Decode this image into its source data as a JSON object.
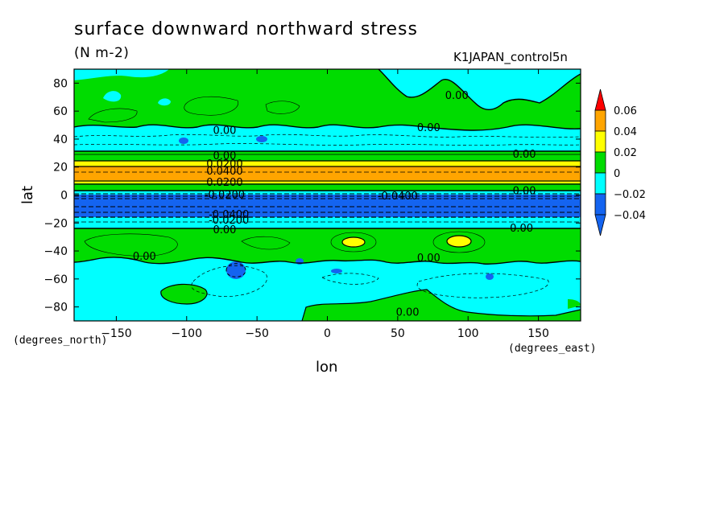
{
  "header": {
    "title": "surface downward northward stress",
    "units": "(N m-2)",
    "run_name": "K1JAPAN_control5n"
  },
  "axes": {
    "x_label": "lon",
    "y_label": "lat",
    "x_units": "(degrees_east)",
    "y_units": "(degrees_north)"
  },
  "colors": {
    "dark_blue": "#1464f0",
    "cyan": "#00ffff",
    "green": "#00dc00",
    "yellow": "#ffff00",
    "orange": "#ffa500",
    "red": "#ff0000"
  },
  "chart_data": {
    "type": "heatmap",
    "title": "surface downward northward stress",
    "subtitle": "(N m-2)",
    "annotation": "K1JAPAN_control5n",
    "xlabel": "lon",
    "ylabel": "lat",
    "xlim": [
      -180,
      180
    ],
    "ylim": [
      -90,
      90
    ],
    "x_ticks": [
      -150,
      -100,
      -50,
      0,
      50,
      100,
      150
    ],
    "y_ticks": [
      80,
      60,
      40,
      20,
      0,
      -20,
      -40,
      -60,
      -80
    ],
    "colorbar": {
      "levels": [
        0.06,
        0.04,
        0.02,
        0,
        -0.02,
        -0.04
      ],
      "level_labels": [
        "0.06",
        "0.04",
        "0.02",
        "0",
        "−0.02",
        "−0.04"
      ],
      "bins": [
        {
          "range": "< -0.04",
          "color": "#1464f0"
        },
        {
          "range": "-0.04 to -0.02",
          "color": "#1464f0"
        },
        {
          "range": "-0.02 to 0",
          "color": "#00ffff"
        },
        {
          "range": "0 to 0.02",
          "color": "#00dc00"
        },
        {
          "range": "0.02 to 0.04",
          "color": "#ffff00"
        },
        {
          "range": "0.04 to 0.06",
          "color": "#ffa500"
        },
        {
          "range": "> 0.06",
          "color": "#ff0000"
        }
      ]
    },
    "zonal_bands": [
      {
        "lat_from": 90,
        "lat_to": 50,
        "category": "0 to 0.02 (with cyan areas)"
      },
      {
        "lat_from": 50,
        "lat_to": 30,
        "category": "-0.02 to 0"
      },
      {
        "lat_from": 30,
        "lat_to": 24,
        "category": "0 to 0.02"
      },
      {
        "lat_from": 24,
        "lat_to": 20,
        "category": "0.02 to 0.04"
      },
      {
        "lat_from": 20,
        "lat_to": 10,
        "category": "0.04 to 0.06"
      },
      {
        "lat_from": 10,
        "lat_to": 2,
        "category": "0 to 0.04"
      },
      {
        "lat_from": 2,
        "lat_to": -1,
        "category": "-0.02 to 0"
      },
      {
        "lat_from": -1,
        "lat_to": -14,
        "category": "below -0.04"
      },
      {
        "lat_from": -14,
        "lat_to": -24,
        "category": "-0.04 to -0.02"
      },
      {
        "lat_from": -24,
        "lat_to": -50,
        "category": "0 to 0.02"
      },
      {
        "lat_from": -50,
        "lat_to": -90,
        "category": "-0.02 to 0"
      }
    ],
    "contour_labels": [
      {
        "lon": -73,
        "lat": 46,
        "text": "0.00"
      },
      {
        "lon": 72,
        "lat": 48,
        "text": "0.00"
      },
      {
        "lon": 92,
        "lat": 71,
        "text": "0.00"
      },
      {
        "lon": -73,
        "lat": 28,
        "text": "0.00"
      },
      {
        "lon": -73,
        "lat": 22,
        "text": "0.0200"
      },
      {
        "lon": -73,
        "lat": 17,
        "text": "0.0400"
      },
      {
        "lon": -73,
        "lat": 9,
        "text": "0.0200"
      },
      {
        "lon": -73,
        "lat": 0,
        "text": "-0.0200"
      },
      {
        "lon": 140,
        "lat": 29,
        "text": "0.00"
      },
      {
        "lon": 140,
        "lat": 3,
        "text": "0.00"
      },
      {
        "lon": 50,
        "lat": -1,
        "text": "-0.0400"
      },
      {
        "lon": -70,
        "lat": -14,
        "text": "-0.0400"
      },
      {
        "lon": -70,
        "lat": -18,
        "text": "-0.0200"
      },
      {
        "lon": -73,
        "lat": -25,
        "text": "0.00"
      },
      {
        "lon": 138,
        "lat": -24,
        "text": "0.00"
      },
      {
        "lon": -130,
        "lat": -44,
        "text": "0.00"
      },
      {
        "lon": 72,
        "lat": -45,
        "text": "0.00"
      },
      {
        "lon": 57,
        "lat": -84,
        "text": "0.00"
      }
    ]
  }
}
